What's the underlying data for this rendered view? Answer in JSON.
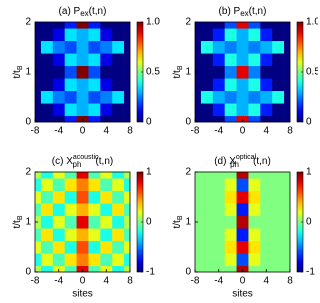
{
  "chart_data": [
    {
      "type": "heatmap",
      "title": "(a) P",
      "title_sub": "ex",
      "title_end": "(t,n)",
      "ylabel": "t/t",
      "ylabel_sub": "B",
      "colormap": "jet",
      "x": [
        -8,
        -6,
        -4,
        -2,
        0,
        2,
        4,
        6,
        8
      ],
      "y": [
        0,
        0.25,
        0.5,
        0.75,
        1,
        1.25,
        1.5,
        1.75,
        2
      ],
      "z": [
        [
          0,
          0,
          0,
          0.15,
          1,
          0.15,
          0,
          0,
          0
        ],
        [
          0,
          0,
          0.1,
          0.35,
          0.3,
          0.35,
          0.1,
          0,
          0
        ],
        [
          0,
          0.35,
          0.25,
          0.2,
          0.3,
          0.2,
          0.25,
          0.35,
          0
        ],
        [
          0,
          0,
          0.1,
          0.35,
          0.3,
          0.35,
          0.1,
          0,
          0
        ],
        [
          0,
          0,
          0,
          0.2,
          1,
          0.2,
          0,
          0,
          0
        ],
        [
          0,
          0,
          0.1,
          0.35,
          0.3,
          0.35,
          0.1,
          0,
          0
        ],
        [
          0,
          0.35,
          0.25,
          0.2,
          0.3,
          0.2,
          0.25,
          0.35,
          0
        ],
        [
          0,
          0,
          0.1,
          0.35,
          0.3,
          0.35,
          0.1,
          0,
          0
        ],
        [
          0,
          0,
          0,
          0.15,
          1,
          0.15,
          0,
          0,
          0
        ]
      ],
      "xlim": [
        -8,
        8
      ],
      "ylim": [
        0,
        2
      ],
      "xticks": [
        -8,
        -4,
        0,
        4,
        8
      ],
      "yticks": [
        0,
        1,
        2
      ],
      "clim": [
        0,
        1
      ],
      "cticks": [
        0,
        0.5,
        {
          "value": 1,
          "label": "1.0"
        }
      ]
    },
    {
      "type": "heatmap",
      "title": "(b) P",
      "title_sub": "ex",
      "title_end": "(t,n)",
      "ylabel": "t/t",
      "ylabel_sub": "B",
      "colormap": "jet",
      "x": [
        -8,
        -6,
        -4,
        -2,
        0,
        2,
        4,
        6,
        8
      ],
      "y": [
        0,
        0.25,
        0.5,
        0.75,
        1,
        1.25,
        1.5,
        1.75,
        2
      ],
      "z": [
        [
          0,
          0,
          0,
          0.2,
          0.9,
          0.2,
          0,
          0,
          0
        ],
        [
          0,
          0,
          0.15,
          0.4,
          0.3,
          0.4,
          0.15,
          0,
          0
        ],
        [
          0,
          0.4,
          0.3,
          0.25,
          0.3,
          0.25,
          0.3,
          0.4,
          0
        ],
        [
          0,
          0,
          0.15,
          0.4,
          0.3,
          0.4,
          0.15,
          0,
          0
        ],
        [
          0,
          0,
          0,
          0.25,
          0.9,
          0.25,
          0,
          0,
          0
        ],
        [
          0,
          0,
          0.15,
          0.4,
          0.3,
          0.4,
          0.15,
          0,
          0
        ],
        [
          0,
          0.4,
          0.3,
          0.25,
          0.3,
          0.25,
          0.3,
          0.4,
          0
        ],
        [
          0,
          0,
          0.15,
          0.4,
          0.3,
          0.4,
          0.15,
          0,
          0
        ],
        [
          0,
          0,
          0,
          0.2,
          0.9,
          0.2,
          0,
          0,
          0
        ]
      ],
      "xlim": [
        -8,
        8
      ],
      "ylim": [
        0,
        2
      ],
      "xticks": [
        -8,
        -4,
        0,
        4,
        8
      ],
      "yticks": [
        0,
        1,
        2
      ],
      "clim": [
        0,
        1
      ],
      "cticks": [
        0,
        0.5,
        {
          "value": 1,
          "label": "1.0"
        }
      ]
    },
    {
      "type": "heatmap",
      "title": "(c) X",
      "title_sub": "ph",
      "title_sup": "acoustic",
      "title_end": "(t,n)",
      "xlabel": "sites",
      "ylabel": "t/t",
      "ylabel_sub": "B",
      "colormap": "jet",
      "x": [
        -8,
        -6,
        -4,
        -2,
        0,
        2,
        4,
        6,
        8
      ],
      "y": [
        0,
        0.25,
        0.5,
        0.75,
        1,
        1.25,
        1.5,
        1.75,
        2
      ],
      "z": [
        [
          0.1,
          -0.2,
          0.2,
          -0.1,
          0.8,
          -0.1,
          0.2,
          -0.2,
          0.1
        ],
        [
          -0.2,
          0.2,
          -0.1,
          0.3,
          0.5,
          0.3,
          -0.1,
          0.2,
          -0.2
        ],
        [
          0.2,
          -0.1,
          0.3,
          -0.2,
          0.6,
          -0.2,
          0.3,
          -0.1,
          0.2
        ],
        [
          -0.1,
          0.3,
          -0.2,
          0.2,
          0.4,
          0.2,
          -0.2,
          0.3,
          -0.1
        ],
        [
          0.1,
          -0.2,
          0.2,
          -0.1,
          0.8,
          -0.1,
          0.2,
          -0.2,
          0.1
        ],
        [
          -0.1,
          0.3,
          -0.2,
          0.2,
          0.4,
          0.2,
          -0.2,
          0.3,
          -0.1
        ],
        [
          0.2,
          -0.1,
          0.3,
          -0.2,
          0.6,
          -0.2,
          0.3,
          -0.1,
          0.2
        ],
        [
          -0.2,
          0.2,
          -0.1,
          0.3,
          0.5,
          0.3,
          -0.1,
          0.2,
          -0.2
        ],
        [
          0.1,
          -0.2,
          0.2,
          -0.1,
          0.8,
          -0.1,
          0.2,
          -0.2,
          0.1
        ]
      ],
      "xlim": [
        -8,
        8
      ],
      "ylim": [
        0,
        2
      ],
      "xticks": [
        -8,
        -4,
        0,
        4,
        8
      ],
      "yticks": [
        0,
        1,
        2
      ],
      "clim": [
        -1,
        1
      ],
      "cticks": [
        -1,
        0,
        1
      ]
    },
    {
      "type": "heatmap",
      "title": "(d) X",
      "title_sub": "ph",
      "title_sup": "optical",
      "title_end": "(t,n)",
      "xlabel": "sites",
      "ylabel": "t/t",
      "ylabel_sub": "B",
      "colormap": "jet",
      "x": [
        -8,
        -6,
        -4,
        -2,
        0,
        2,
        4,
        6,
        8
      ],
      "y": [
        0,
        0.25,
        0.5,
        0.75,
        1,
        1.25,
        1.5,
        1.75,
        2
      ],
      "z": [
        [
          0,
          0,
          0,
          0,
          0.9,
          0,
          0,
          0,
          0
        ],
        [
          0,
          0,
          0,
          0.2,
          -0.6,
          0.2,
          0,
          0,
          0
        ],
        [
          0,
          0,
          0,
          0.3,
          0.8,
          0.3,
          0,
          0,
          0
        ],
        [
          0,
          0,
          0,
          0.2,
          -0.7,
          0.2,
          0,
          0,
          0
        ],
        [
          0,
          0,
          0,
          0,
          0.9,
          0,
          0,
          0,
          0
        ],
        [
          0,
          0,
          0,
          0.2,
          -0.7,
          0.2,
          0,
          0,
          0
        ],
        [
          0,
          0,
          0,
          0.3,
          0.8,
          0.3,
          0,
          0,
          0
        ],
        [
          0,
          0,
          0,
          0.2,
          -0.6,
          0.2,
          0,
          0,
          0
        ],
        [
          0,
          0,
          0,
          0,
          0.9,
          0,
          0,
          0,
          0
        ]
      ],
      "xlim": [
        -8,
        8
      ],
      "ylim": [
        0,
        2
      ],
      "xticks": [
        -8,
        -4,
        0,
        4,
        8
      ],
      "yticks": [
        0,
        1,
        2
      ],
      "clim": [
        -1,
        1
      ],
      "cticks": [
        -1,
        0,
        1
      ]
    }
  ]
}
